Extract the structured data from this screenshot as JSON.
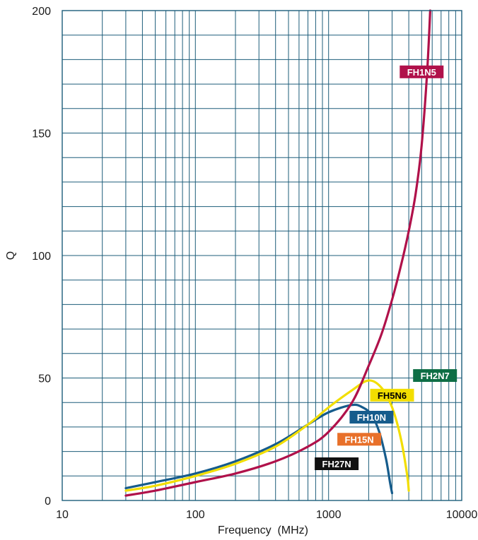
{
  "chart_data": {
    "type": "line",
    "title": "",
    "xlabel": "Frequency  (MHz)",
    "ylabel": "Q",
    "xscale": "log",
    "xlim": [
      10,
      10000
    ],
    "ylim": [
      0,
      200
    ],
    "x_ticks": [
      "10",
      "100",
      "1000",
      "10000"
    ],
    "y_ticks": [
      "0",
      "50",
      "100",
      "150",
      "200"
    ],
    "grid": true,
    "legend": "inline labels near curves",
    "series": [
      {
        "name": "FH1N5",
        "color": "#b0114a",
        "label_color": "#b0114a",
        "label_text_dark": false,
        "label_at": [
          5000,
          175
        ],
        "points": [
          [
            30,
            2
          ],
          [
            50,
            4
          ],
          [
            100,
            7.5
          ],
          [
            200,
            11
          ],
          [
            400,
            16
          ],
          [
            700,
            22
          ],
          [
            1000,
            28
          ],
          [
            1500,
            40
          ],
          [
            2000,
            55
          ],
          [
            2500,
            68
          ],
          [
            3000,
            82
          ],
          [
            3500,
            96
          ],
          [
            4000,
            110
          ],
          [
            4500,
            125
          ],
          [
            5000,
            145
          ],
          [
            5500,
            175
          ],
          [
            5800,
            200
          ]
        ]
      },
      {
        "name": "FH2N7",
        "color": "#0e6e45",
        "label_color": "#0e6e45",
        "label_text_dark": false,
        "label_at": [
          6300,
          51
        ]
      },
      {
        "name": "FH5N6",
        "color": "#f2de00",
        "label_color": "#f2de00",
        "label_text_dark": true,
        "label_at": [
          3000,
          43
        ],
        "points": [
          [
            30,
            4
          ],
          [
            50,
            6
          ],
          [
            100,
            10
          ],
          [
            200,
            15
          ],
          [
            400,
            22
          ],
          [
            700,
            31
          ],
          [
            1000,
            38
          ],
          [
            1500,
            45
          ],
          [
            2000,
            49
          ],
          [
            2500,
            46
          ],
          [
            3000,
            38
          ],
          [
            3500,
            25
          ],
          [
            3900,
            10
          ],
          [
            4000,
            4
          ]
        ]
      },
      {
        "name": "FH10N",
        "color": "#165c8c",
        "label_color": "#165c8c",
        "label_text_dark": false,
        "label_at": [
          2100,
          34
        ],
        "points": [
          [
            30,
            5
          ],
          [
            50,
            7.5
          ],
          [
            100,
            11
          ],
          [
            200,
            16
          ],
          [
            400,
            23
          ],
          [
            700,
            31
          ],
          [
            1000,
            36
          ],
          [
            1500,
            39
          ],
          [
            1800,
            38
          ],
          [
            2100,
            35
          ],
          [
            2400,
            28
          ],
          [
            2700,
            17
          ],
          [
            2900,
            7
          ],
          [
            3000,
            3
          ]
        ]
      },
      {
        "name": "FH15N",
        "color": "#e8702a",
        "label_color": "#e8702a",
        "label_text_dark": false,
        "label_at": [
          1700,
          25
        ]
      },
      {
        "name": "FH27N",
        "color": "#111111",
        "label_color": "#111111",
        "label_text_dark": false,
        "label_at": [
          1150,
          15
        ]
      }
    ]
  }
}
